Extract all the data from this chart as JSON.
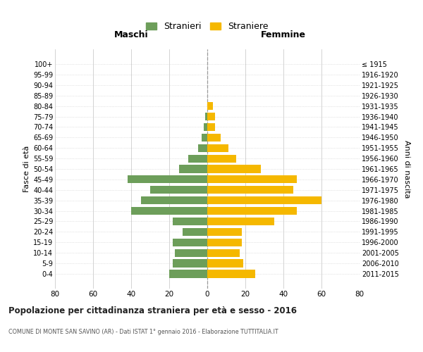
{
  "age_groups": [
    "100+",
    "95-99",
    "90-94",
    "85-89",
    "80-84",
    "75-79",
    "70-74",
    "65-69",
    "60-64",
    "55-59",
    "50-54",
    "45-49",
    "40-44",
    "35-39",
    "30-34",
    "25-29",
    "20-24",
    "15-19",
    "10-14",
    "5-9",
    "0-4"
  ],
  "birth_years": [
    "≤ 1915",
    "1916-1920",
    "1921-1925",
    "1926-1930",
    "1931-1935",
    "1936-1940",
    "1941-1945",
    "1946-1950",
    "1951-1955",
    "1956-1960",
    "1961-1965",
    "1966-1970",
    "1971-1975",
    "1976-1980",
    "1981-1985",
    "1986-1990",
    "1991-1995",
    "1996-2000",
    "2001-2005",
    "2006-2010",
    "2011-2015"
  ],
  "males": [
    0,
    0,
    0,
    0,
    0,
    1,
    2,
    3,
    5,
    10,
    15,
    42,
    30,
    35,
    40,
    18,
    13,
    18,
    17,
    18,
    20
  ],
  "females": [
    0,
    0,
    0,
    0,
    3,
    4,
    4,
    7,
    11,
    15,
    28,
    47,
    45,
    60,
    47,
    35,
    18,
    18,
    17,
    19,
    25
  ],
  "male_color": "#6d9e5a",
  "female_color": "#f5b800",
  "background_color": "#ffffff",
  "grid_color": "#cccccc",
  "title": "Popolazione per cittadinanza straniera per età e sesso - 2016",
  "subtitle": "COMUNE DI MONTE SAN SAVINO (AR) - Dati ISTAT 1° gennaio 2016 - Elaborazione TUTTITALIA.IT",
  "xlabel_left": "Maschi",
  "xlabel_right": "Femmine",
  "ylabel_left": "Fasce di età",
  "ylabel_right": "Anni di nascita",
  "legend_male": "Stranieri",
  "legend_female": "Straniere",
  "xlim": 80
}
